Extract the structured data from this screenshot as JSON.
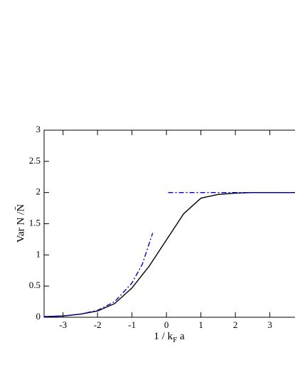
{
  "chart_data": {
    "type": "line",
    "x_label": [
      "1 / k",
      "F",
      " a"
    ],
    "y_label": "Var N /N̄",
    "xlim": [
      -3.55,
      3.75
    ],
    "ylim": [
      0,
      3
    ],
    "xticks": [
      -3,
      -2,
      -1,
      0,
      1,
      2,
      3
    ],
    "yticks": [
      0,
      0.5,
      1,
      1.5,
      2,
      2.5,
      3
    ],
    "series": [
      {
        "color": "#000000",
        "style": "solid",
        "x": [
          -3.55,
          -3,
          -2.5,
          -2,
          -1.5,
          -1,
          -0.5,
          0,
          0.5,
          1,
          1.5,
          2,
          2.5,
          3,
          3.75
        ],
        "values": [
          0.01,
          0.02,
          0.05,
          0.1,
          0.22,
          0.47,
          0.82,
          1.24,
          1.66,
          1.91,
          1.97,
          1.99,
          2.0,
          2.0,
          2.0
        ]
      },
      {
        "color": "#0000cc",
        "style": "dashdot",
        "x": [
          -3.55,
          -3,
          -2.5,
          -2,
          -1.5,
          -1,
          -0.7,
          -0.4
        ],
        "values": [
          0.01,
          0.02,
          0.05,
          0.11,
          0.25,
          0.55,
          0.85,
          1.35
        ]
      },
      {
        "color": "#0000cc",
        "style": "dashdot",
        "x": [
          0.05,
          3.75
        ],
        "values": [
          2,
          2
        ]
      }
    ]
  }
}
